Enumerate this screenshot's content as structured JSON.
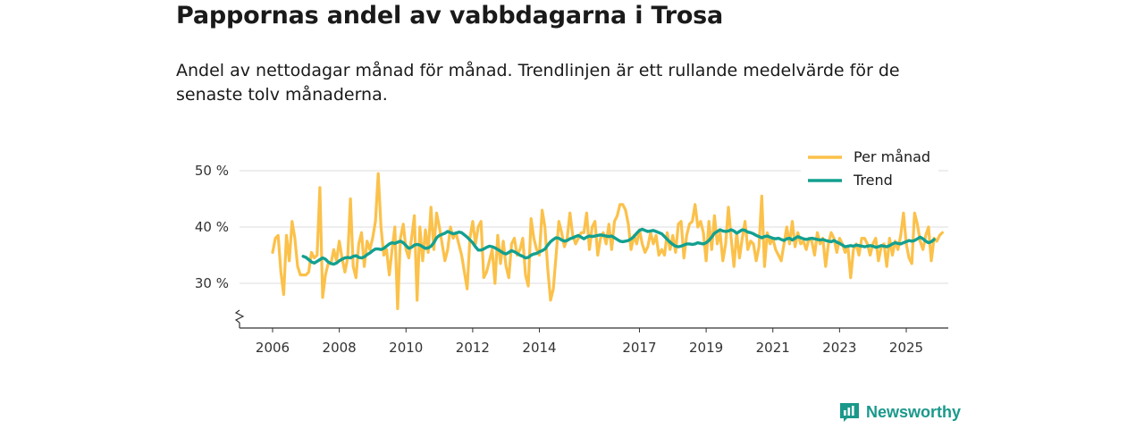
{
  "colors": {
    "monthly": "#fbc14a",
    "trend": "#13a090",
    "grid": "#dddddd",
    "axis": "#333333",
    "brand": "#1a998b"
  },
  "brand": {
    "name": "Newsworthy"
  },
  "chart_data": {
    "type": "line",
    "title": "Pappornas andel av vabbdagarna i Trosa",
    "subtitle": "Andel av nettodagar månad för månad. Trendlinjen är ett rullande medelvärde för de senaste tolv månaderna.",
    "xlabel": "",
    "ylabel": "",
    "xlim": [
      2005.9,
      2025.62
    ],
    "ylim": [
      22,
      52
    ],
    "y_ticks": [
      30,
      40,
      50
    ],
    "y_tick_labels": [
      "30 %",
      "40 %",
      "50 %"
    ],
    "x_ticks": [
      2006,
      2008,
      2010,
      2012,
      2014,
      2017,
      2019,
      2021,
      2023,
      2025
    ],
    "x_tick_labels": [
      "2006",
      "2008",
      "2010",
      "2012",
      "2014",
      "2017",
      "2019",
      "2021",
      "2023",
      "2025"
    ],
    "grid": "horizontal",
    "axis_break": true,
    "legend": {
      "position": "top-right",
      "entries": [
        "Per månad",
        "Trend"
      ]
    },
    "series": [
      {
        "name": "Per månad",
        "x_start": 2006.0,
        "x_step": 0.0833333,
        "values": [
          35.5,
          38,
          38.5,
          32,
          28,
          38.5,
          34,
          41,
          38,
          33,
          31.5,
          31.5,
          31.5,
          32,
          35.5,
          34.5,
          35,
          47,
          27.5,
          31.5,
          33.5,
          33.5,
          36,
          34,
          37.5,
          34.5,
          32,
          34.5,
          45,
          33,
          31,
          37,
          39,
          33,
          37.5,
          36,
          38,
          41,
          49.5,
          40,
          35,
          36,
          31.5,
          36,
          40,
          25.5,
          38,
          40.5,
          36,
          34.5,
          38,
          42,
          27,
          40,
          34,
          39.5,
          35.5,
          43.5,
          36,
          42.5,
          40,
          37,
          34,
          36,
          40,
          38,
          39,
          37,
          35,
          32,
          29,
          38,
          41,
          37,
          40,
          41,
          31,
          32,
          34,
          36,
          30,
          38.5,
          33.5,
          37.5,
          33,
          31,
          37,
          38,
          35,
          36,
          38,
          31.5,
          29.5,
          41.5,
          38,
          36,
          35,
          43,
          40,
          32.5,
          27,
          29,
          35,
          41,
          39,
          36.5,
          38,
          42.5,
          38.5,
          37,
          38,
          39,
          39,
          42.5,
          36,
          40,
          41,
          35,
          38,
          39,
          37,
          40.5,
          36,
          41,
          42,
          44,
          44,
          43,
          40.5,
          36,
          38.5,
          37,
          39.5,
          37,
          35.5,
          36.5,
          39,
          37,
          38.5,
          35,
          36,
          35,
          39,
          36,
          38.5,
          35.5,
          40.5,
          41,
          34.5,
          38.5,
          40.5,
          41,
          44,
          40,
          41,
          39,
          34,
          41,
          36,
          42,
          37,
          39,
          34,
          37,
          43.5,
          38,
          33,
          39,
          34.5,
          38,
          41,
          36,
          37.5,
          37,
          34,
          36.5,
          45.5,
          33,
          39,
          37,
          38,
          36,
          35,
          34,
          37,
          40,
          37,
          41,
          36.5,
          39,
          37,
          37.5,
          36,
          38,
          37.5,
          35,
          39,
          37,
          38,
          33,
          37,
          39,
          38,
          35.5,
          38,
          37,
          35.5,
          36.5,
          31,
          36,
          37,
          35,
          38,
          38,
          37,
          35,
          37,
          38,
          34,
          36.5,
          37,
          33,
          38,
          35,
          37.5,
          36,
          38.5,
          42.5,
          37,
          34.5,
          33.5,
          42.5,
          40.5,
          37.5,
          36,
          38.5,
          40,
          34,
          38,
          37.5,
          38.5,
          39
        ]
      },
      {
        "name": "Trend",
        "x_start": 2006.917,
        "x_step": 0.0833333,
        "values": [
          34.8,
          34.6,
          34.2,
          33.8,
          33.6,
          33.9,
          34.2,
          34.5,
          34.3,
          33.8,
          33.5,
          33.4,
          33.6,
          34,
          34.3,
          34.5,
          34.6,
          34.5,
          34.8,
          34.9,
          34.6,
          34.5,
          34.7,
          35.1,
          35.4,
          35.8,
          36.1,
          36.1,
          36,
          36.2,
          36.6,
          37,
          37.2,
          37.1,
          37.3,
          37.5,
          37.2,
          36.7,
          36.2,
          36.4,
          36.8,
          36.9,
          36.8,
          36.5,
          36.2,
          36.3,
          36.6,
          37.2,
          38.1,
          38.5,
          38.7,
          38.9,
          39.2,
          39,
          38.8,
          38.9,
          39.1,
          39,
          38.6,
          38.2,
          37.7,
          37.2,
          36.5,
          35.9,
          35.9,
          36.1,
          36.4,
          36.6,
          36.5,
          36.3,
          36,
          35.7,
          35.4,
          35.2,
          35.5,
          35.8,
          35.6,
          35.3,
          35,
          34.8,
          34.5,
          34.6,
          35,
          35.2,
          35.3,
          35.6,
          35.8,
          36.1,
          36.8,
          37.4,
          37.8,
          38.1,
          38,
          37.7,
          37.5,
          37.6,
          37.9,
          38.1,
          38.3,
          38.5,
          38.2,
          37.9,
          38.2,
          38.4,
          38.3,
          38.4,
          38.5,
          38.6,
          38.5,
          38.4,
          38.3,
          38.4,
          38.1,
          37.8,
          37.5,
          37.4,
          37.5,
          37.6,
          37.9,
          38.3,
          38.9,
          39.4,
          39.6,
          39.4,
          39.2,
          39.3,
          39.4,
          39.2,
          39,
          38.8,
          38.3,
          37.8,
          37.3,
          36.9,
          36.6,
          36.5,
          36.6,
          36.8,
          37,
          37,
          36.9,
          37,
          37.2,
          37.1,
          37,
          37.2,
          37.6,
          38.2,
          38.9,
          39.2,
          39.5,
          39.3,
          39.2,
          39.3,
          39.5,
          39.3,
          38.9,
          39.2,
          39.5,
          39.4,
          39.1,
          39,
          38.8,
          38.5,
          38.3,
          38.1,
          38.3,
          38.4,
          38.2,
          38,
          37.9,
          38,
          37.8,
          37.6,
          37.9,
          38,
          37.7,
          38,
          38.3,
          38.1,
          37.9,
          37.8,
          37.9,
          38,
          37.9,
          37.8,
          37.7,
          37.8,
          37.6,
          37.5,
          37.4,
          37.6,
          37.3,
          37.1,
          36.8,
          36.5,
          36.6,
          36.7,
          36.6,
          36.8,
          36.7,
          36.6,
          36.5,
          36.6,
          36.7,
          36.6,
          36.4,
          36.5,
          36.7,
          36.6,
          36.5,
          36.7,
          37,
          37.2,
          37.1,
          37,
          37.2,
          37.4,
          37.6,
          37.5,
          37.6,
          37.9,
          38.2,
          37.9,
          37.5,
          37.2,
          37.4,
          37.8
        ]
      }
    ]
  }
}
